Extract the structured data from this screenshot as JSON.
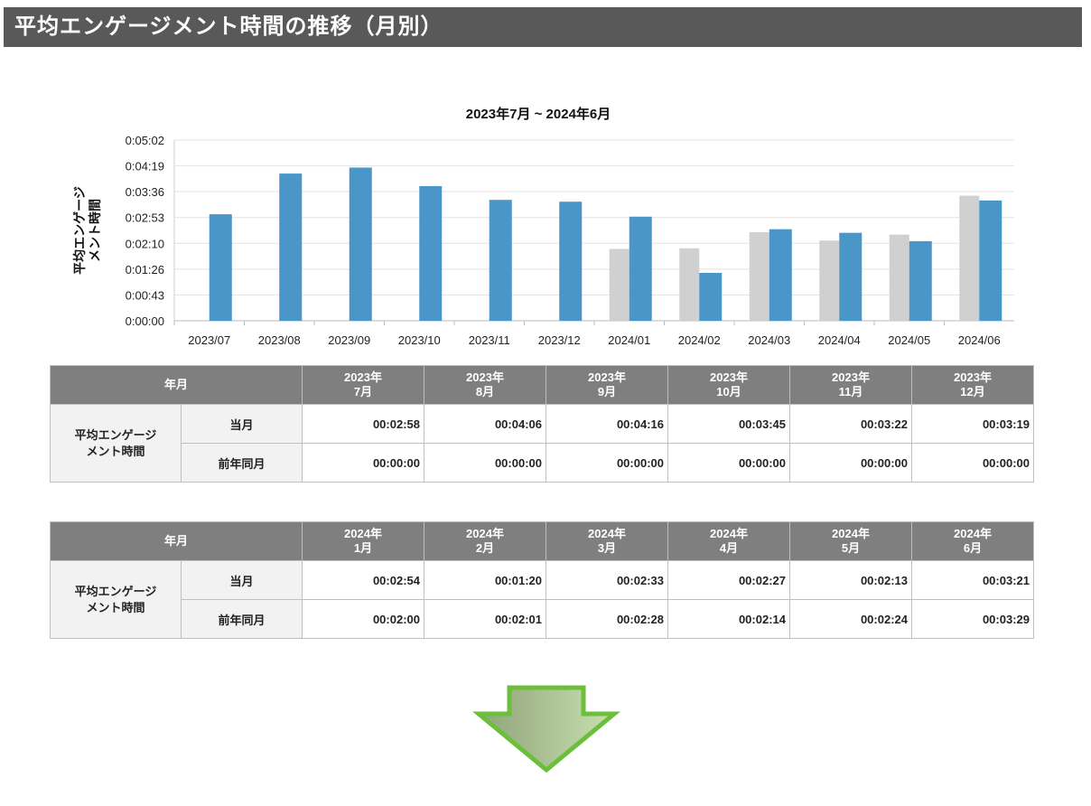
{
  "header": {
    "title": "平均エンゲージメント時間の推移（月別）"
  },
  "chart_data": {
    "type": "bar",
    "title": "2023年7月 ~ 2024年6月",
    "ylabel": "平均エンゲージメント時間",
    "categories": [
      "2023/07",
      "2023/08",
      "2023/09",
      "2023/10",
      "2023/11",
      "2023/12",
      "2024/01",
      "2024/02",
      "2024/03",
      "2024/04",
      "2024/05",
      "2024/06"
    ],
    "yticks": [
      "0:00:00",
      "0:00:43",
      "0:01:26",
      "0:02:10",
      "0:02:53",
      "0:03:36",
      "0:04:19",
      "0:05:02"
    ],
    "ylim_seconds": [
      0,
      302
    ],
    "series": [
      {
        "name": "前年同月",
        "color": "#d0d0d0",
        "values_seconds": [
          0,
          0,
          0,
          0,
          0,
          0,
          120,
          121,
          148,
          134,
          144,
          209
        ]
      },
      {
        "name": "当月",
        "color": "#4a96c8",
        "values_seconds": [
          178,
          246,
          256,
          225,
          202,
          199,
          174,
          80,
          153,
          147,
          133,
          201
        ]
      }
    ],
    "grid": true
  },
  "tables": [
    {
      "corner": "年月",
      "row_label": "平均エンゲージメント時間",
      "row_label_1": "平均エンゲージ",
      "row_label_2": "メント時間",
      "sub_current": "当月",
      "sub_prev": "前年同月",
      "cols": [
        {
          "y": "2023年",
          "m": "7月"
        },
        {
          "y": "2023年",
          "m": "8月"
        },
        {
          "y": "2023年",
          "m": "9月"
        },
        {
          "y": "2023年",
          "m": "10月"
        },
        {
          "y": "2023年",
          "m": "11月"
        },
        {
          "y": "2023年",
          "m": "12月"
        }
      ],
      "current": [
        "00:02:58",
        "00:04:06",
        "00:04:16",
        "00:03:45",
        "00:03:22",
        "00:03:19"
      ],
      "prev": [
        "00:00:00",
        "00:00:00",
        "00:00:00",
        "00:00:00",
        "00:00:00",
        "00:00:00"
      ]
    },
    {
      "corner": "年月",
      "row_label_1": "平均エンゲージ",
      "row_label_2": "メント時間",
      "sub_current": "当月",
      "sub_prev": "前年同月",
      "cols": [
        {
          "y": "2024年",
          "m": "1月"
        },
        {
          "y": "2024年",
          "m": "2月"
        },
        {
          "y": "2024年",
          "m": "3月"
        },
        {
          "y": "2024年",
          "m": "4月"
        },
        {
          "y": "2024年",
          "m": "5月"
        },
        {
          "y": "2024年",
          "m": "6月"
        }
      ],
      "current": [
        "00:02:54",
        "00:01:20",
        "00:02:33",
        "00:02:27",
        "00:02:13",
        "00:03:21"
      ],
      "prev": [
        "00:02:00",
        "00:02:01",
        "00:02:28",
        "00:02:14",
        "00:02:24",
        "00:03:29"
      ]
    }
  ]
}
